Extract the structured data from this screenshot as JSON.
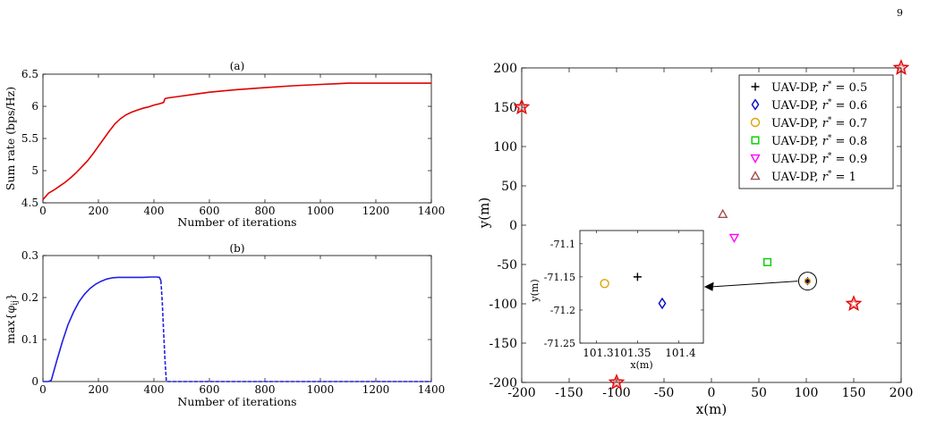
{
  "page_number": "9",
  "chart_data": [
    {
      "type": "line",
      "title": "(a)",
      "xlabel": "Number of iterations",
      "ylabel": "Sum rate (bps/Hz)",
      "xlim": [
        0,
        1400
      ],
      "ylim": [
        4.5,
        6.5
      ],
      "xticks": [
        0,
        200,
        400,
        600,
        800,
        1000,
        1200,
        1400
      ],
      "yticks": [
        4.5,
        5,
        5.5,
        6,
        6.5
      ],
      "ytick_labels": [
        "4.5",
        "5",
        "5.5",
        "6",
        "6.5"
      ],
      "grid": false,
      "series": [
        {
          "color": "#e00000",
          "style": "solid",
          "x": [
            0,
            10,
            20,
            40,
            60,
            80,
            100,
            120,
            140,
            160,
            180,
            200,
            220,
            240,
            260,
            280,
            300,
            320,
            340,
            360,
            380,
            400,
            420,
            435,
            440,
            450,
            500,
            550,
            600,
            700,
            800,
            900,
            1000,
            1050,
            1100,
            1200,
            1300,
            1400
          ],
          "y": [
            4.55,
            4.6,
            4.65,
            4.7,
            4.76,
            4.82,
            4.89,
            4.97,
            5.06,
            5.15,
            5.26,
            5.38,
            5.5,
            5.62,
            5.73,
            5.81,
            5.87,
            5.91,
            5.94,
            5.97,
            5.99,
            6.02,
            6.04,
            6.06,
            6.12,
            6.13,
            6.16,
            6.19,
            6.22,
            6.26,
            6.29,
            6.32,
            6.34,
            6.35,
            6.36,
            6.36,
            6.36,
            6.36
          ]
        }
      ]
    },
    {
      "type": "line",
      "title": "(b)",
      "xlabel": "Number of iterations",
      "ylabel": "max{φ",
      "ylabel_sub": "ij",
      "ylabel_end": "}",
      "xlim": [
        0,
        1400
      ],
      "ylim": [
        0,
        0.3
      ],
      "xticks": [
        0,
        200,
        400,
        600,
        800,
        1000,
        1200,
        1400
      ],
      "yticks": [
        0,
        0.1,
        0.2,
        0.3
      ],
      "ytick_labels": [
        "0",
        "0.1",
        "0.2",
        "0.3"
      ],
      "grid": false,
      "series": [
        {
          "color": "#2020e0",
          "style": "solid",
          "x": [
            0,
            20,
            30,
            50,
            70,
            90,
            110,
            130,
            150,
            170,
            190,
            210,
            230,
            250,
            270,
            300,
            330,
            360,
            390,
            410,
            420,
            425
          ],
          "y": [
            0,
            0,
            0.003,
            0.05,
            0.095,
            0.135,
            0.165,
            0.19,
            0.208,
            0.222,
            0.232,
            0.239,
            0.244,
            0.247,
            0.248,
            0.248,
            0.248,
            0.248,
            0.249,
            0.249,
            0.248,
            0.24
          ]
        },
        {
          "color": "#2020e0",
          "style": "dashed",
          "x": [
            425,
            430,
            435,
            440,
            445,
            450,
            500,
            600,
            800,
            1000,
            1200,
            1400
          ],
          "y": [
            0.24,
            0.19,
            0.12,
            0.05,
            0.0,
            0.0,
            0.0,
            0.0,
            0.0,
            0.0,
            0.0,
            0.0
          ]
        }
      ]
    },
    {
      "type": "scatter",
      "xlabel": "x(m)",
      "ylabel": "y(m)",
      "xlim": [
        -200,
        200
      ],
      "ylim": [
        -200,
        200
      ],
      "xticks": [
        -200,
        -150,
        -100,
        -50,
        0,
        50,
        100,
        150,
        200
      ],
      "xtick_labels": [
        "-200",
        "-150",
        "-100",
        "-50",
        "0",
        "50",
        "100",
        "150",
        "200"
      ],
      "yticks": [
        -200,
        -150,
        -100,
        -50,
        0,
        50,
        100,
        150,
        200
      ],
      "ytick_labels": [
        "-200",
        "-150",
        "-100",
        "-50",
        "0",
        "50",
        "100",
        "150",
        "200"
      ],
      "grid": false,
      "legend_position": "top-right",
      "series": [
        {
          "label": "UAV-DP, r* = 0.5",
          "marker": "plus",
          "color": "#000000",
          "x": [
            101.35
          ],
          "y": [
            -71.15
          ]
        },
        {
          "label": "UAV-DP, r* = 0.6",
          "marker": "diamond",
          "color": "#0000cc",
          "x": [
            101.38
          ],
          "y": [
            -71.19
          ]
        },
        {
          "label": "UAV-DP, r* = 0.7",
          "marker": "circle",
          "color": "#e0a000",
          "x": [
            101.31
          ],
          "y": [
            -71.16
          ]
        },
        {
          "label": "UAV-DP, r* = 0.8",
          "marker": "square",
          "color": "#00cc00",
          "x": [
            59
          ],
          "y": [
            -47
          ]
        },
        {
          "label": "UAV-DP, r* = 0.9",
          "marker": "triangle-down",
          "color": "#ff00ff",
          "x": [
            24
          ],
          "y": [
            -16
          ]
        },
        {
          "label": "UAV-DP, r* = 1",
          "marker": "triangle-up",
          "color": "#a05050",
          "x": [
            12
          ],
          "y": [
            14
          ]
        }
      ],
      "users": {
        "marker": "star",
        "color": "#e00000",
        "x": [
          -200,
          -100,
          150,
          200
        ],
        "y": [
          150,
          -200,
          -100,
          200
        ]
      },
      "inset": {
        "xlabel": "x(m)",
        "ylabel": "y(m)",
        "xlim": [
          101.28,
          101.43
        ],
        "ylim": [
          -71.25,
          -71.08
        ],
        "xticks": [
          101.3,
          101.35,
          101.4
        ],
        "xtick_labels": [
          "101.3",
          "101.35",
          "101.4"
        ],
        "yticks": [
          -71.25,
          -71.2,
          -71.15,
          -71.1
        ],
        "ytick_labels": [
          "-71.25",
          "-71.2",
          "-71.15",
          "-71.1"
        ],
        "zoom_center_x": 101.35,
        "zoom_center_y": -71.15
      }
    }
  ]
}
